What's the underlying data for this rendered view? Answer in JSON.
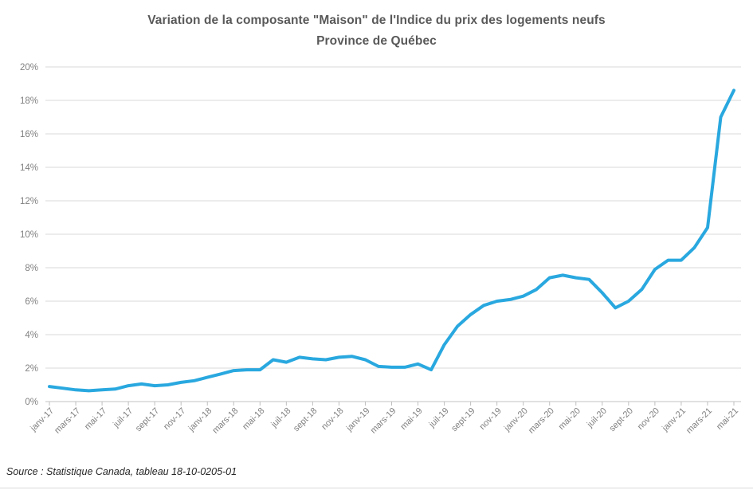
{
  "source_note": "Source : Statistique Canada, tableau 18-10-0205-01",
  "chart_data": {
    "type": "line",
    "title": "Variation de la composante \"Maison\" de l'Indice du prix des logements neufs",
    "subtitle": "Province de Québec",
    "unit": "percent",
    "n_points": 53,
    "x_tick_step": 2,
    "x_tick_labels": [
      "janv-17",
      "mars-17",
      "mai-17",
      "juil-17",
      "sept-17",
      "nov-17",
      "janv-18",
      "mars-18",
      "mai-18",
      "juil-18",
      "sept-18",
      "nov-18",
      "janv-19",
      "mars-19",
      "mai-19",
      "juil-19",
      "sept-19",
      "nov-19",
      "janv-20",
      "mars-20",
      "mai-20",
      "juil-20",
      "sept-20",
      "nov-20",
      "janv-21",
      "mars-21",
      "mai-21"
    ],
    "y_tick_labels": [
      "0%",
      "2%",
      "4%",
      "6%",
      "8%",
      "10%",
      "12%",
      "14%",
      "16%",
      "18%",
      "20%"
    ],
    "ylim": [
      0,
      20
    ],
    "y_tick_step": 2,
    "grid": true,
    "legend": "none",
    "series": [
      {
        "name": "Variation composante Maison",
        "values": [
          0.9,
          0.8,
          0.7,
          0.65,
          0.7,
          0.75,
          0.95,
          1.05,
          0.95,
          1.0,
          1.15,
          1.25,
          1.45,
          1.65,
          1.85,
          1.9,
          1.9,
          2.5,
          2.35,
          2.65,
          2.55,
          2.5,
          2.65,
          2.7,
          2.5,
          2.1,
          2.05,
          2.05,
          2.25,
          1.9,
          3.4,
          4.5,
          5.2,
          5.75,
          6.0,
          6.1,
          6.3,
          6.7,
          7.4,
          7.55,
          7.4,
          7.3,
          6.5,
          5.6,
          6.0,
          6.7,
          7.9,
          8.45,
          8.45,
          9.2,
          10.4,
          17.0,
          18.6
        ]
      }
    ],
    "colors": {
      "line": "#29a8df",
      "gridline": "#d9d9d9",
      "axis_line": "#c3c3c3",
      "tick_mark": "#bfbfbf",
      "axis_text": "#808080",
      "title_text": "#595959"
    }
  }
}
